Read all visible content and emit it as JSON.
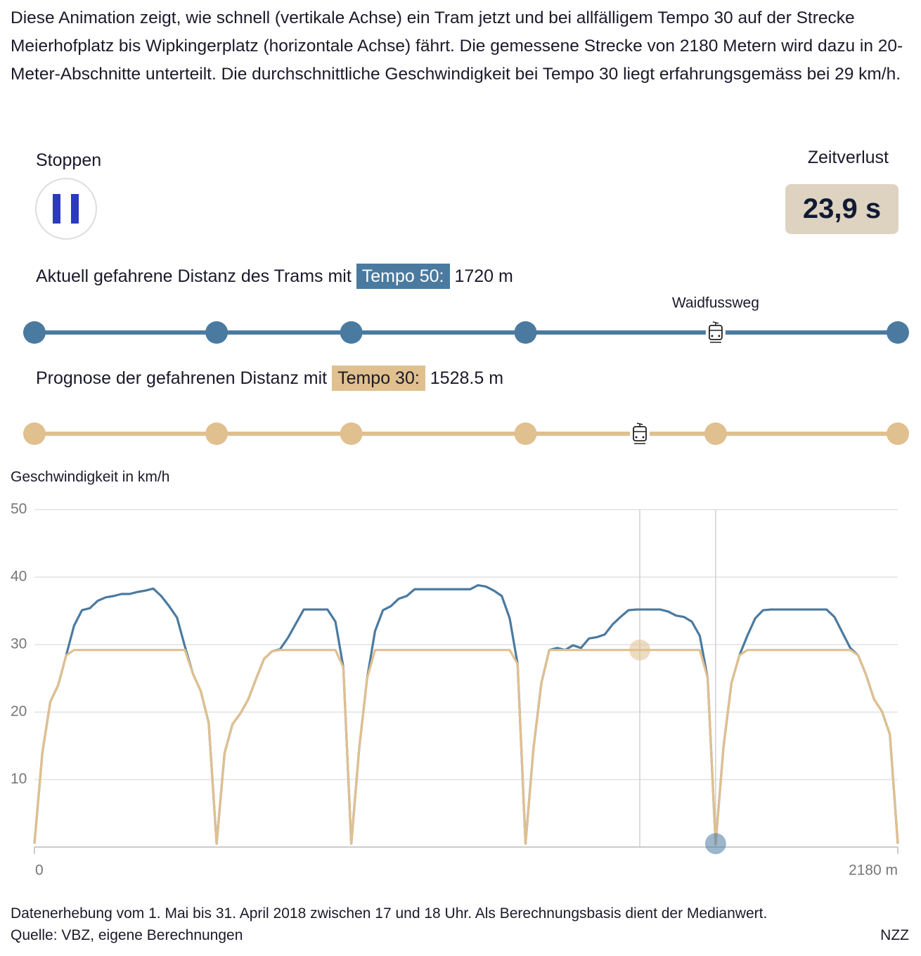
{
  "intro": "Diese Animation zeigt, wie schnell (vertikale Achse) ein Tram jetzt und bei allfälligem Tempo 30 auf der Strecke Meierhofplatz bis Wipkingerplatz (horizontale Achse) fährt. Die gemessene Strecke von 2180 Metern wird dazu in 20-Meter-Abschnitte unterteilt. Die durchschnittliche Geschwindigkeit bei Tempo 30 liegt erfahrungsgemäss bei 29 km/h.",
  "controls": {
    "button_label": "Stoppen",
    "loss_label": "Zeitverlust",
    "loss_value": "23,9 s"
  },
  "tracks": [
    {
      "caption": "Aktuell gefahrene Distanz des Trams mit",
      "tag": "Tempo 50:",
      "distance": {
        "value": 1720,
        "label": "1720 m"
      },
      "color": "#4a7aa0"
    },
    {
      "caption": "Prognose der gefahrenen Distanz mit",
      "tag": "Tempo 30:",
      "distance": {
        "value": 1528.5,
        "label": "1528.5 m"
      },
      "color": "#e0c08f"
    }
  ],
  "stops": [
    0,
    460,
    800,
    1240,
    1720,
    2180
  ],
  "named_stop": {
    "distance": 1720,
    "label": "Waidfussweg"
  },
  "chart_data": {
    "type": "line",
    "y_label": "Geschwindigkeit in km/h",
    "x": [
      0,
      20,
      40,
      60,
      80,
      100,
      120,
      140,
      160,
      180,
      200,
      220,
      240,
      260,
      280,
      300,
      320,
      340,
      360,
      380,
      400,
      420,
      440,
      460,
      480,
      500,
      520,
      540,
      560,
      580,
      600,
      620,
      640,
      660,
      680,
      700,
      720,
      740,
      760,
      780,
      800,
      820,
      840,
      860,
      880,
      900,
      920,
      940,
      960,
      980,
      1000,
      1020,
      1040,
      1060,
      1080,
      1100,
      1120,
      1140,
      1160,
      1180,
      1200,
      1220,
      1240,
      1260,
      1280,
      1300,
      1320,
      1340,
      1360,
      1380,
      1400,
      1420,
      1440,
      1460,
      1480,
      1500,
      1520,
      1540,
      1560,
      1580,
      1600,
      1620,
      1640,
      1660,
      1680,
      1700,
      1720,
      1740,
      1760,
      1780,
      1800,
      1820,
      1840,
      1860,
      1880,
      1900,
      1920,
      1940,
      1960,
      1980,
      2000,
      2020,
      2040,
      2060,
      2080,
      2100,
      2120,
      2140,
      2160,
      2180
    ],
    "series": [
      {
        "color": "#4a7aa0",
        "values": [
          0.5,
          14,
          21.5,
          24,
          28.4,
          32.8,
          35.1,
          35.4,
          36.5,
          37,
          37.2,
          37.5,
          37.5,
          37.8,
          38,
          38.3,
          37.2,
          35.7,
          34,
          29.7,
          25.7,
          23.1,
          18.4,
          0.5,
          13.9,
          18.2,
          19.8,
          21.9,
          25,
          27.9,
          29,
          29.3,
          31,
          33.1,
          35.2,
          35.2,
          35.2,
          35.2,
          33.4,
          26.6,
          0.5,
          14.6,
          25,
          32,
          35.1,
          35.7,
          36.8,
          37.2,
          38.2,
          38.2,
          38.2,
          38.2,
          38.2,
          38.2,
          38.2,
          38.2,
          38.8,
          38.6,
          38,
          37.2,
          33.9,
          27.1,
          0.5,
          14.6,
          24.3,
          29.2,
          29.5,
          29.2,
          29.9,
          29.5,
          30.9,
          31.1,
          31.5,
          33,
          34.1,
          35.1,
          35.2,
          35.2,
          35.2,
          35.2,
          34.9,
          34.3,
          34.1,
          33.4,
          31.3,
          25,
          0.5,
          14.9,
          24.3,
          28.4,
          31.3,
          33.9,
          35.1,
          35.2,
          35.2,
          35.2,
          35.2,
          35.2,
          35.2,
          35.2,
          35.2,
          34.1,
          31.8,
          29.5,
          28.4,
          25.5,
          21.9,
          20.1,
          16.7,
          0.5
        ]
      },
      {
        "color": "#e0c08f",
        "values": [
          0.5,
          14,
          21.5,
          24,
          28.4,
          29.2,
          29.2,
          29.2,
          29.2,
          29.2,
          29.2,
          29.2,
          29.2,
          29.2,
          29.2,
          29.2,
          29.2,
          29.2,
          29.2,
          29.2,
          25.7,
          23.1,
          18.4,
          0.5,
          13.9,
          18.2,
          19.8,
          21.9,
          25,
          27.9,
          29,
          29.2,
          29.2,
          29.2,
          29.2,
          29.2,
          29.2,
          29.2,
          29.2,
          26.6,
          0.5,
          14.6,
          25,
          29.2,
          29.2,
          29.2,
          29.2,
          29.2,
          29.2,
          29.2,
          29.2,
          29.2,
          29.2,
          29.2,
          29.2,
          29.2,
          29.2,
          29.2,
          29.2,
          29.2,
          29.2,
          27.1,
          0.5,
          14.6,
          24.3,
          29.2,
          29.2,
          29.2,
          29.2,
          29.2,
          29.2,
          29.2,
          29.2,
          29.2,
          29.2,
          29.2,
          29.2,
          29.2,
          29.2,
          29.2,
          29.2,
          29.2,
          29.2,
          29.2,
          29.2,
          25,
          0.5,
          14.9,
          24.3,
          28.4,
          29.2,
          29.2,
          29.2,
          29.2,
          29.2,
          29.2,
          29.2,
          29.2,
          29.2,
          29.2,
          29.2,
          29.2,
          29.2,
          29.2,
          28.4,
          25.5,
          21.9,
          20.1,
          16.7,
          0.5
        ]
      }
    ],
    "xlim": [
      0,
      2180
    ],
    "ylim": [
      0,
      50
    ],
    "xticks": [
      0,
      {
        "value": 2180,
        "label": "2180 m"
      }
    ],
    "yticks": [
      10,
      20,
      30,
      40,
      50
    ],
    "grid": true
  },
  "footer": {
    "note": "Datenerhebung vom 1. Mai bis 31. April 2018 zwischen 17 und 18 Uhr. Als Berechnungsbasis dient der Medianwert.",
    "source": "Quelle: VBZ, eigene Berechnungen",
    "brand": "NZZ"
  }
}
